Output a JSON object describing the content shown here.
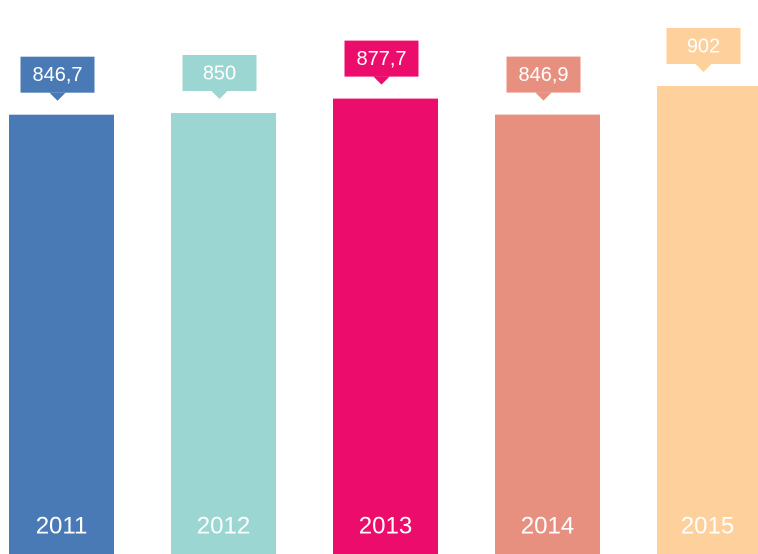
{
  "chart_data": {
    "type": "bar",
    "categories": [
      "2011",
      "2012",
      "2013",
      "2014",
      "2015"
    ],
    "values": [
      846.7,
      850,
      877.7,
      846.9,
      902
    ],
    "value_labels": [
      "846,7",
      "850",
      "877,7",
      "846,9",
      "902"
    ],
    "colors": [
      "#4a7ab5",
      "#9bd6d2",
      "#ec0c6c",
      "#e89080",
      "#fdd09c"
    ]
  }
}
